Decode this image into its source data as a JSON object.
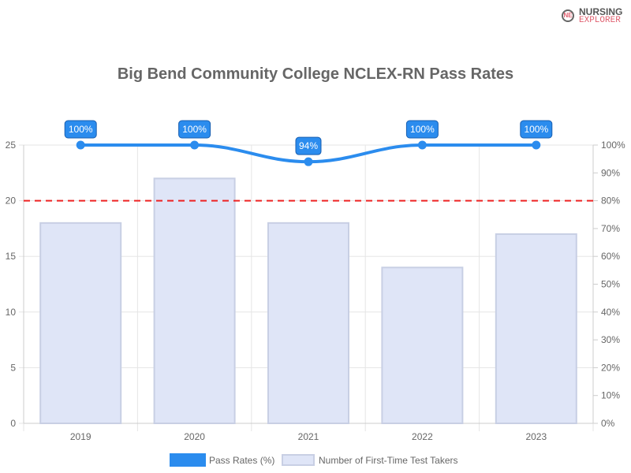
{
  "logo": {
    "line1": "NURSING",
    "line2": "EXPLORER"
  },
  "chart_data": {
    "type": "bar+line",
    "title": "Big Bend Community College NCLEX-RN Pass Rates",
    "categories": [
      "2019",
      "2020",
      "2021",
      "2022",
      "2023"
    ],
    "series": [
      {
        "name": "Pass Rates (%)",
        "type": "line",
        "axis": "right",
        "values": [
          100,
          100,
          94,
          100,
          100
        ],
        "labels": [
          "100%",
          "100%",
          "94%",
          "100%",
          "100%"
        ],
        "color": "#2b8cee"
      },
      {
        "name": "Number of First-Time Test Takers",
        "type": "bar",
        "axis": "left",
        "values": [
          18,
          22,
          18,
          14,
          17
        ],
        "color": "#dfe5f7"
      }
    ],
    "y_left": {
      "range": [
        0,
        25
      ],
      "ticks": [
        "0",
        "5",
        "10",
        "15",
        "20",
        "25"
      ]
    },
    "y_right": {
      "range": [
        0,
        100
      ],
      "ticks": [
        "0%",
        "10%",
        "20%",
        "30%",
        "40%",
        "50%",
        "60%",
        "70%",
        "80%",
        "90%",
        "100%"
      ]
    },
    "reference_line": {
      "value": 80,
      "axis": "right",
      "color": "#ee2222",
      "style": "dashed"
    },
    "grid": true,
    "legend": "bottom"
  }
}
